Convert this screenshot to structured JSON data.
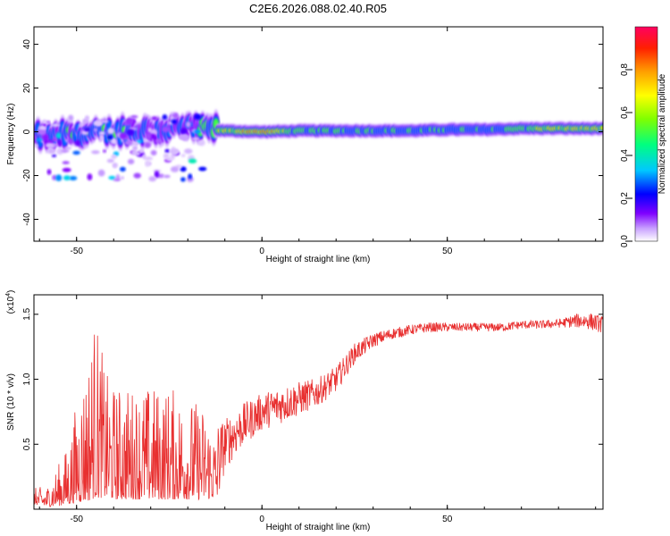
{
  "title": "C2E6.2026.088.02.40.R05",
  "chart_data": [
    {
      "type": "heatmap",
      "xlabel": "Height of straight line (km)",
      "ylabel": "Frequency (Hz)",
      "xlim": [
        -61.5,
        92
      ],
      "ylim": [
        -50,
        48
      ],
      "x_ticks": [
        -50,
        0,
        50
      ],
      "y_ticks": [
        -40,
        -20,
        0,
        20,
        40
      ],
      "colorbar": {
        "label": "Normalized spectral amplitude",
        "range": [
          0,
          1
        ],
        "ticks": [
          0.0,
          0.2,
          0.4,
          0.6,
          0.8
        ],
        "tick_labels": [
          "0.0",
          "0.2",
          "0.4",
          "0.6",
          "0.8"
        ],
        "colors": [
          "#ffffff",
          "#c8a0ff",
          "#7f00ff",
          "#0000ff",
          "#00c8ff",
          "#00ff80",
          "#80ff00",
          "#ffff00",
          "#ffa000",
          "#ff2000",
          "#ff0060"
        ]
      },
      "ridge": {
        "description_points_x": [
          -60,
          -50,
          -40,
          -30,
          -20,
          -10,
          0,
          10,
          20,
          30,
          40,
          50,
          60,
          70,
          80,
          90
        ],
        "center_frequency": [
          -2,
          -1,
          0,
          1,
          2,
          0.5,
          0,
          0.5,
          0.5,
          0.5,
          0.5,
          1,
          1,
          1.5,
          1.5,
          1.5
        ],
        "peak_amplitude": [
          0.45,
          0.55,
          0.5,
          0.45,
          0.4,
          0.75,
          1.0,
          0.55,
          0.6,
          0.55,
          0.5,
          0.55,
          0.5,
          0.6,
          0.8,
          0.75
        ]
      }
    },
    {
      "type": "line",
      "xlabel": "Height of straight line (km)",
      "ylabel": "SNR (10 * v/v)",
      "y_multiplier_label": "(x10",
      "y_multiplier_exp": "4",
      "y_multiplier_close": ")",
      "xlim": [
        -61.5,
        92
      ],
      "ylim": [
        0,
        16500
      ],
      "x_ticks": [
        -50,
        0,
        50
      ],
      "y_ticks": [
        5000,
        10000,
        15000
      ],
      "y_tick_labels": [
        "0.5",
        "1.0",
        "1.5"
      ],
      "series": [
        {
          "color": "#e83030",
          "envelope_x": [
            -61.5,
            -58,
            -55,
            -52,
            -50,
            -47,
            -45,
            -42,
            -40,
            -35,
            -30,
            -25,
            -20,
            -15,
            -12,
            -10,
            -5,
            0,
            5,
            10,
            15,
            20,
            25,
            30,
            35,
            40,
            45,
            50,
            55,
            60,
            65,
            70,
            75,
            80,
            85,
            88,
            92
          ],
          "envelope_base": [
            1500,
            700,
            1000,
            1500,
            2000,
            2500,
            3500,
            3500,
            3000,
            3000,
            3000,
            3000,
            3000,
            3000,
            3500,
            5000,
            6500,
            7500,
            8000,
            8500,
            9000,
            10000,
            12000,
            13000,
            13500,
            13800,
            14000,
            14000,
            14000,
            14000,
            14000,
            14200,
            14200,
            14300,
            14500,
            14500,
            14200
          ],
          "envelope_noise": [
            800,
            1000,
            2000,
            3000,
            5000,
            7000,
            9000,
            6000,
            5500,
            5500,
            5500,
            5500,
            5000,
            4500,
            3000,
            1800,
            1500,
            1300,
            1300,
            1200,
            1000,
            900,
            700,
            500,
            400,
            350,
            350,
            300,
            300,
            300,
            300,
            300,
            300,
            300,
            500,
            600,
            600
          ]
        }
      ]
    }
  ]
}
